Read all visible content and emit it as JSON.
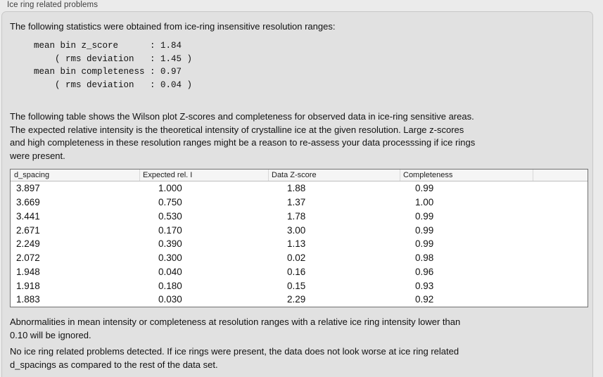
{
  "colors": {
    "outer_background": "#ebebeb",
    "panel_background": "#e1e1e1",
    "panel_border": "#c8c8c8",
    "table_border": "#707070",
    "table_header_background": "#f5f5f5"
  },
  "panel": {
    "title": "Ice ring related problems",
    "intro": "The following statistics were obtained from ice-ring insensitive resolution ranges:",
    "stats_block": "mean bin z_score      : 1.84\n    ( rms deviation   : 1.45 )\nmean bin completeness : 0.97\n    ( rms deviation   : 0.04 )",
    "stats": {
      "mean_bin_z_score": "1.84",
      "mean_bin_z_score_rms_deviation": "1.45",
      "mean_bin_completeness": "0.97",
      "mean_bin_completeness_rms_deviation": "0.04"
    },
    "description": "The following table shows the Wilson plot Z-scores and completeness for observed data in ice-ring sensitive areas.\nThe expected relative intensity is the theoretical intensity of crystalline ice at the given resolution. Large z-scores\nand high completeness in these resolution ranges might be a reason to re-assess your data processsing if ice rings\nwere present.",
    "note_ignore": "Abnormalities in mean intensity or completeness at resolution ranges with a relative ice ring intensity lower than\n0.10 will be ignored.",
    "conclusion": "No ice ring related problems detected. If ice rings were present, the data does not look worse at ice ring related\nd_spacings as compared to the rest of the data set."
  },
  "table": {
    "columns": [
      "d_spacing",
      "Expected rel. I",
      "Data Z-score",
      "Completeness",
      ""
    ],
    "rows": [
      [
        "3.897",
        "1.000",
        "1.88",
        "0.99"
      ],
      [
        "3.669",
        "0.750",
        "1.37",
        "1.00"
      ],
      [
        "3.441",
        "0.530",
        "1.78",
        "0.99"
      ],
      [
        "2.671",
        "0.170",
        "3.00",
        "0.99"
      ],
      [
        "2.249",
        "0.390",
        "1.13",
        "0.99"
      ],
      [
        "2.072",
        "0.300",
        "0.02",
        "0.98"
      ],
      [
        "1.948",
        "0.040",
        "0.16",
        "0.96"
      ],
      [
        "1.918",
        "0.180",
        "0.15",
        "0.93"
      ],
      [
        "1.883",
        "0.030",
        "2.29",
        "0.92"
      ]
    ]
  }
}
